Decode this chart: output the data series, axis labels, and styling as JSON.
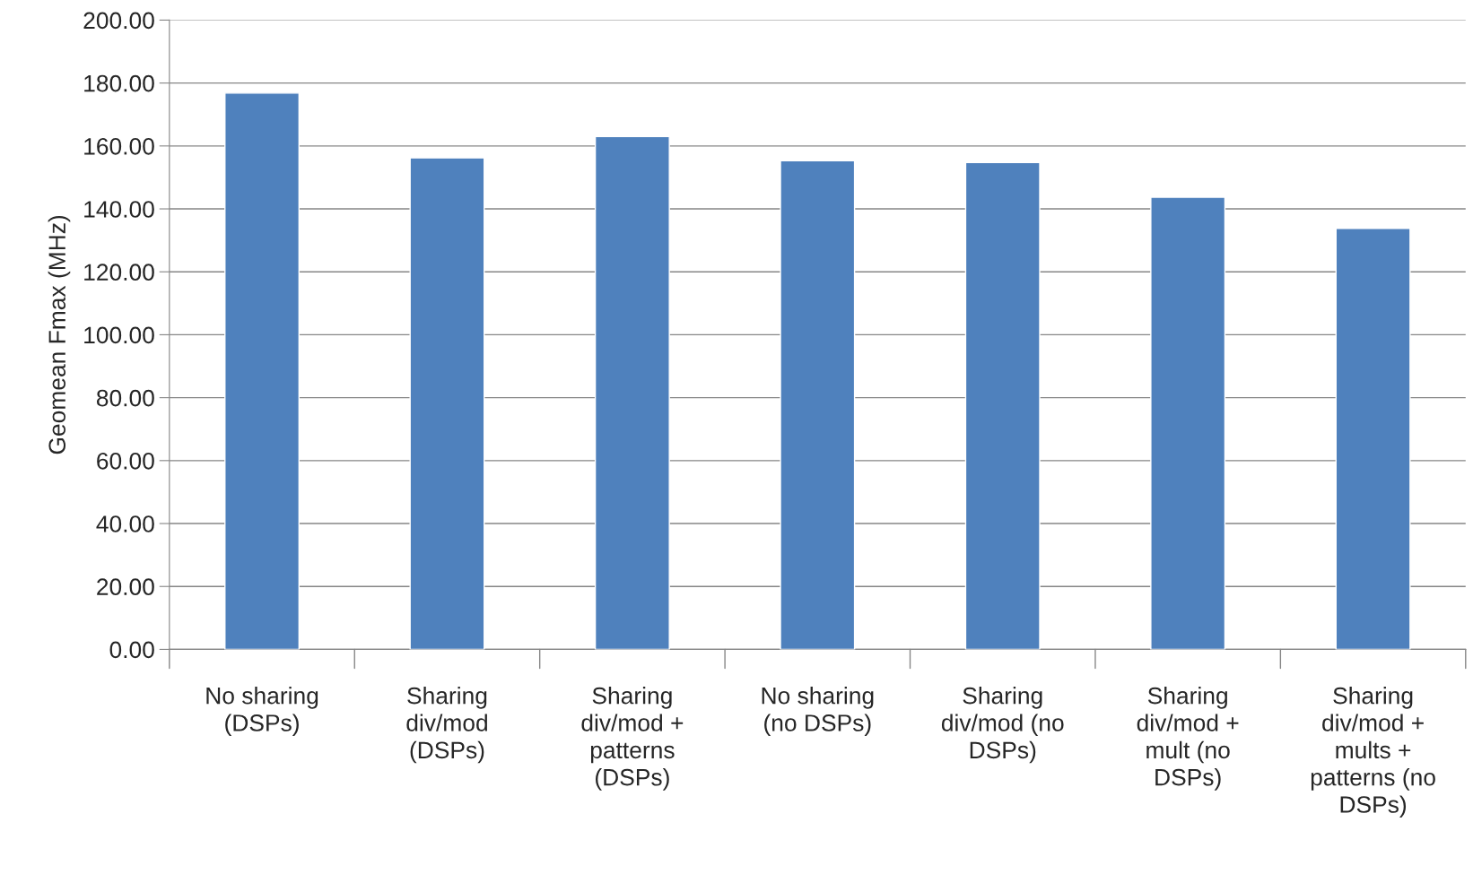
{
  "chart_data": {
    "type": "bar",
    "ylabel": "Geomean Fmax (MHz)",
    "categories": [
      "No sharing\n(DSPs)",
      "Sharing\ndiv/mod\n(DSPs)",
      "Sharing\ndiv/mod +\npatterns\n(DSPs)",
      "No sharing\n(no DSPs)",
      "Sharing\ndiv/mod (no\nDSPs)",
      "Sharing\ndiv/mod +\nmult (no\nDSPs)",
      "Sharing\ndiv/mod +\nmults +\npatterns (no\nDSPs)"
    ],
    "values": [
      176.8,
      156.2,
      163.0,
      155.3,
      154.7,
      143.7,
      133.8
    ],
    "color": "#4f81bd",
    "ylim": [
      0,
      200
    ],
    "yticks": [
      {
        "value": 0,
        "label": "0.00"
      },
      {
        "value": 20,
        "label": "20.00"
      },
      {
        "value": 40,
        "label": "40.00"
      },
      {
        "value": 60,
        "label": "60.00"
      },
      {
        "value": 80,
        "label": "80.00"
      },
      {
        "value": 100,
        "label": "100.00"
      },
      {
        "value": 120,
        "label": "120.00"
      },
      {
        "value": 140,
        "label": "140.00"
      },
      {
        "value": 160,
        "label": "160.00"
      },
      {
        "value": 180,
        "label": "180.00"
      },
      {
        "value": 200,
        "label": "200.00"
      }
    ],
    "grid": "y",
    "legend": false
  }
}
